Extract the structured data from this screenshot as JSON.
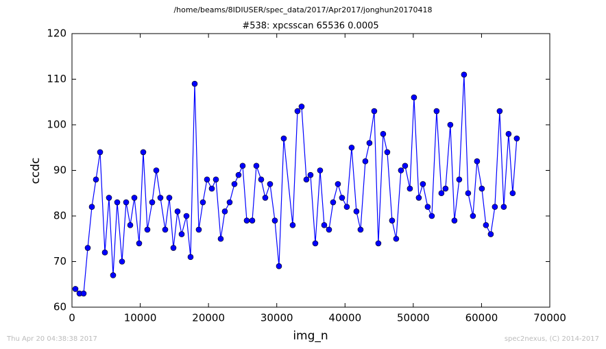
{
  "chart_data": {
    "type": "line",
    "suptitle": "/home/beams/8IDIUSER/spec_data/2017/Apr2017/jonghun20170418",
    "title": "#538: xpcsscan 65536 0.0005",
    "x_label": "img_n",
    "y_label": "ccdc",
    "footer_left": "Thu Apr 20 04:38:38 2017",
    "footer_right": "spec2nexus, (C) 2014-2017",
    "xlim": [
      0,
      70000
    ],
    "xticks": [
      0,
      10000,
      20000,
      30000,
      40000,
      50000,
      60000,
      70000
    ],
    "ylim": [
      60,
      120
    ],
    "yticks": [
      60,
      70,
      80,
      90,
      100,
      110,
      120
    ],
    "x": [
      502,
      1105,
      1707,
      2310,
      2913,
      3515,
      4118,
      4821,
      5423,
      6026,
      6628,
      7331,
      7934,
      8536,
      9139,
      9842,
      10444,
      11047,
      11750,
      12352,
      12955,
      13657,
      14260,
      14863,
      15465,
      16068,
      16771,
      17373,
      17976,
      18578,
      19181,
      19784,
      20486,
      21089,
      21792,
      22394,
      23097,
      23800,
      24402,
      25005,
      25607,
      26411,
      27013,
      27716,
      28318,
      29021,
      29724,
      30326,
      31029,
      32335,
      33037,
      33640,
      34343,
      34945,
      35648,
      36351,
      36953,
      37656,
      38259,
      38961,
      39564,
      40267,
      40970,
      41672,
      42275,
      42978,
      43580,
      44283,
      44886,
      45588,
      46191,
      46894,
      47496,
      48199,
      48801,
      49504,
      50107,
      50810,
      51412,
      52115,
      52718,
      53420,
      54123,
      54725,
      55428,
      56031,
      56733,
      57436,
      58039,
      58741,
      59344,
      60047,
      60649,
      61352,
      61955,
      62657,
      63260,
      63963,
      64565,
      65168
    ],
    "series": [
      {
        "name": "ccdc",
        "color": "#0000ff",
        "values": [
          64,
          63,
          63,
          73,
          82,
          88,
          94,
          72,
          84,
          67,
          83,
          70,
          83,
          78,
          84,
          74,
          94,
          77,
          83,
          90,
          84,
          77,
          84,
          73,
          81,
          76,
          80,
          71,
          109,
          77,
          83,
          88,
          86,
          88,
          75,
          81,
          83,
          87,
          89,
          91,
          79,
          79,
          91,
          88,
          84,
          87,
          79,
          69,
          97,
          78,
          103,
          104,
          88,
          89,
          74,
          90,
          78,
          77,
          83,
          87,
          84,
          82,
          95,
          81,
          77,
          92,
          96,
          103,
          74,
          98,
          94,
          79,
          75,
          90,
          91,
          86,
          106,
          84,
          87,
          82,
          80,
          103,
          85,
          86,
          100,
          79,
          88,
          111,
          85,
          80,
          92,
          86,
          78,
          76,
          82,
          103,
          82,
          98,
          85,
          97
        ]
      }
    ]
  }
}
